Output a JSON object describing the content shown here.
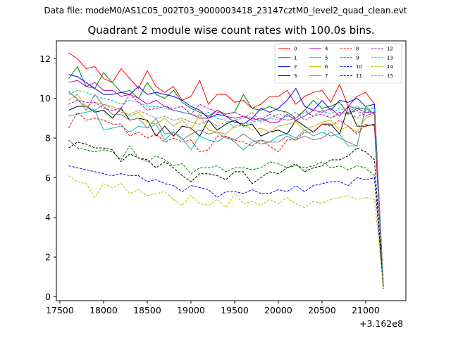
{
  "header": {
    "text": "Data file: modeM0/AS1C05_002T03_9000003418_23147cztM0_level2_quad_clean.evt"
  },
  "chart_data": {
    "type": "line",
    "title": "Quadrant 2 module wise count rates with 100.0s bins.",
    "xlabel": "",
    "ylabel": "",
    "x_offset_label": "+3.162e8",
    "xlim": [
      17460,
      21460
    ],
    "ylim": [
      -0.2,
      12.9
    ],
    "x_ticks": [
      17500,
      18000,
      18500,
      19000,
      19500,
      20000,
      20500,
      21000
    ],
    "y_ticks": [
      0,
      2,
      4,
      6,
      8,
      10,
      12
    ],
    "legend": {
      "position": "top-right",
      "columns": 4
    },
    "x_start": 17600,
    "x_step": 100,
    "series": [
      {
        "name": "0",
        "color": "#ff0000",
        "dash": false,
        "values": [
          12.3,
          12.0,
          11.5,
          11.6,
          11.0,
          10.8,
          11.5,
          11.0,
          10.5,
          11.4,
          10.6,
          10.3,
          10.6,
          9.9,
          10.1,
          10.9,
          9.7,
          10.2,
          10.2,
          9.8,
          9.9,
          9.5,
          9.7,
          10.1,
          10.1,
          10.4,
          9.7,
          10.1,
          10.3,
          10.4,
          9.8,
          10.7,
          9.6,
          10.1,
          10.3,
          9.7,
          0.6
        ]
      },
      {
        "name": "1",
        "color": "#008000",
        "dash": false,
        "values": [
          11.0,
          11.6,
          10.6,
          10.5,
          11.3,
          10.8,
          10.3,
          10.4,
          10.0,
          10.8,
          10.2,
          10.0,
          10.4,
          9.8,
          9.5,
          9.3,
          9.1,
          9.4,
          9.2,
          9.3,
          10.2,
          9.5,
          9.4,
          9.6,
          9.4,
          9.3,
          9.0,
          9.4,
          9.9,
          9.5,
          9.6,
          9.8,
          9.2,
          9.5,
          9.5,
          9.2,
          0.5
        ]
      },
      {
        "name": "2",
        "color": "#0000ff",
        "dash": false,
        "values": [
          11.2,
          11.1,
          10.8,
          10.5,
          10.2,
          10.2,
          10.3,
          10.2,
          10.6,
          10.2,
          10.3,
          10.2,
          10.1,
          9.9,
          9.6,
          9.4,
          9.0,
          9.2,
          9.1,
          8.8,
          8.7,
          9.0,
          9.5,
          9.3,
          9.5,
          9.9,
          10.5,
          9.6,
          9.4,
          9.9,
          9.4,
          9.9,
          9.8,
          10.0,
          9.6,
          9.7,
          0.7
        ]
      },
      {
        "name": "3",
        "color": "#000000",
        "dash": false,
        "values": [
          9.4,
          9.6,
          9.6,
          9.3,
          9.4,
          9.0,
          9.5,
          8.9,
          9.0,
          8.9,
          8.1,
          8.6,
          8.1,
          8.6,
          8.5,
          8.1,
          8.9,
          8.4,
          8.7,
          8.9,
          8.6,
          8.7,
          8.1,
          8.3,
          8.4,
          8.2,
          8.9,
          8.6,
          8.3,
          8.7,
          8.7,
          8.2,
          9.6,
          8.6,
          8.6,
          8.7,
          0.5
        ]
      },
      {
        "name": "4",
        "color": "#bf00bf",
        "dash": false,
        "values": [
          10.8,
          10.9,
          10.6,
          10.8,
          10.4,
          10.4,
          10.1,
          10.2,
          10.0,
          9.7,
          9.9,
          9.6,
          9.4,
          9.3,
          9.2,
          9.0,
          9.0,
          9.4,
          9.1,
          9.0,
          9.1,
          8.9,
          9.0,
          8.8,
          8.8,
          9.2,
          8.9,
          9.1,
          9.4,
          9.3,
          9.5,
          9.1,
          9.6,
          9.5,
          9.3,
          9.3,
          0.6
        ]
      },
      {
        "name": "5",
        "color": "#00bfbf",
        "dash": false,
        "values": [
          9.1,
          9.2,
          9.3,
          9.4,
          8.4,
          8.5,
          8.6,
          8.3,
          8.6,
          8.5,
          8.7,
          7.9,
          8.3,
          8.0,
          7.4,
          8.1,
          7.9,
          7.8,
          8.1,
          7.8,
          7.4,
          7.8,
          7.9,
          7.8,
          8.1,
          8.2,
          8.0,
          8.4,
          8.1,
          8.3,
          8.1,
          8.2,
          7.6,
          7.6,
          9.5,
          9.2,
          0.6
        ]
      },
      {
        "name": "6",
        "color": "#bfbf00",
        "dash": false,
        "values": [
          9.9,
          10.2,
          9.6,
          9.8,
          9.7,
          9.6,
          9.4,
          9.1,
          9.3,
          8.8,
          8.7,
          9.0,
          8.6,
          8.9,
          8.4,
          9.2,
          8.4,
          8.3,
          8.2,
          8.6,
          8.7,
          8.4,
          8.5,
          8.3,
          8.6,
          8.7,
          8.8,
          8.4,
          8.6,
          8.8,
          8.9,
          8.4,
          8.6,
          8.3,
          9.0,
          9.2,
          0.7
        ]
      },
      {
        "name": "7",
        "color": "#808080",
        "dash": false,
        "values": [
          10.3,
          10.0,
          9.4,
          10.2,
          9.6,
          9.2,
          9.2,
          8.9,
          9.0,
          8.5,
          9.0,
          8.2,
          8.3,
          7.9,
          8.2,
          8.4,
          8.2,
          8.3,
          8.0,
          7.9,
          8.2,
          7.9,
          7.7,
          7.8,
          7.8,
          8.1,
          7.9,
          8.1,
          7.9,
          8.0,
          8.3,
          8.0,
          7.8,
          7.6,
          9.6,
          9.2,
          0.8
        ]
      },
      {
        "name": "8",
        "color": "#ff0000",
        "dash": true,
        "values": [
          8.5,
          9.3,
          8.9,
          9.0,
          8.9,
          8.7,
          8.7,
          8.1,
          8.3,
          8.0,
          8.2,
          7.8,
          8.0,
          7.8,
          7.9,
          7.3,
          7.4,
          8.1,
          8.1,
          7.9,
          7.8,
          7.6,
          7.9,
          7.6,
          7.3,
          7.9,
          7.9,
          8.3,
          8.3,
          8.7,
          8.6,
          8.9,
          8.6,
          8.2,
          8.7,
          8.6,
          0.6
        ]
      },
      {
        "name": "9",
        "color": "#008000",
        "dash": true,
        "values": [
          7.9,
          7.5,
          7.4,
          7.3,
          7.4,
          7.3,
          6.9,
          7.6,
          7.0,
          6.8,
          7.1,
          6.9,
          6.6,
          6.7,
          6.2,
          6.5,
          6.5,
          6.6,
          6.3,
          6.5,
          6.5,
          6.4,
          6.5,
          6.8,
          6.7,
          6.5,
          6.6,
          6.5,
          6.6,
          6.8,
          6.5,
          6.6,
          6.4,
          6.6,
          6.5,
          6.1,
          0.5
        ]
      },
      {
        "name": "10",
        "color": "#0000ff",
        "dash": true,
        "values": [
          6.6,
          6.5,
          6.4,
          6.3,
          6.2,
          6.1,
          6.2,
          6.1,
          6.1,
          5.8,
          5.9,
          5.7,
          5.6,
          5.3,
          5.6,
          5.5,
          5.4,
          5.0,
          5.3,
          5.3,
          5.2,
          5.4,
          5.2,
          5.2,
          5.4,
          5.3,
          5.6,
          5.3,
          5.6,
          5.7,
          5.8,
          5.8,
          5.6,
          6.0,
          5.9,
          6.0,
          0.6
        ]
      },
      {
        "name": "11",
        "color": "#000000",
        "dash": true,
        "values": [
          7.5,
          7.8,
          7.7,
          7.5,
          7.5,
          7.4,
          6.8,
          7.2,
          7.0,
          6.9,
          6.5,
          6.8,
          6.5,
          6.1,
          5.8,
          6.2,
          6.2,
          6.1,
          5.9,
          6.3,
          6.3,
          5.7,
          6.0,
          6.3,
          6.2,
          6.5,
          6.7,
          6.3,
          6.5,
          6.6,
          6.9,
          6.9,
          7.1,
          7.5,
          7.3,
          6.9,
          0.4
        ]
      },
      {
        "name": "12",
        "color": "#bf00bf",
        "dash": true,
        "values": [
          9.7,
          9.9,
          9.8,
          9.8,
          9.5,
          9.4,
          9.5,
          10.2,
          9.8,
          9.4,
          9.5,
          9.6,
          9.5,
          9.6,
          9.2,
          9.7,
          9.5,
          9.3,
          9.2,
          9.3,
          9.1,
          9.0,
          8.9,
          9.2,
          9.0,
          8.9,
          9.0,
          9.4,
          9.1,
          9.2,
          9.0,
          9.3,
          9.2,
          9.4,
          9.1,
          9.3,
          0.8
        ]
      },
      {
        "name": "13",
        "color": "#00bfbf",
        "dash": true,
        "values": [
          10.2,
          10.4,
          10.3,
          10.1,
          10.0,
          9.9,
          9.7,
          9.9,
          9.8,
          9.6,
          9.6,
          9.5,
          9.4,
          9.3,
          9.2,
          9.1,
          9.3,
          9.0,
          8.9,
          8.5,
          8.7,
          8.8,
          8.9,
          9.0,
          8.9,
          9.1,
          9.0,
          9.3,
          9.1,
          9.4,
          9.2,
          9.5,
          9.3,
          9.6,
          9.4,
          9.5,
          0.7
        ]
      },
      {
        "name": "14",
        "color": "#bfbf00",
        "dash": true,
        "values": [
          6.1,
          5.8,
          5.7,
          5.0,
          5.7,
          5.5,
          5.7,
          5.2,
          5.4,
          5.1,
          5.2,
          5.3,
          4.9,
          4.6,
          5.1,
          4.7,
          4.6,
          4.9,
          4.5,
          5.2,
          4.7,
          4.8,
          4.6,
          4.9,
          4.7,
          5.0,
          4.7,
          4.5,
          4.8,
          4.7,
          4.9,
          5.0,
          5.1,
          4.9,
          5.0,
          4.9,
          0.6
        ]
      },
      {
        "name": "15",
        "color": "#808080",
        "dash": true,
        "values": [
          10.4,
          9.9,
          9.6,
          9.4,
          9.7,
          9.5,
          9.3,
          9.2,
          9.4,
          9.2,
          9.0,
          9.1,
          8.9,
          9.0,
          8.8,
          8.7,
          8.9,
          8.6,
          8.8,
          8.9,
          9.0,
          9.3,
          8.8,
          9.0,
          9.2,
          9.1,
          9.3,
          8.9,
          9.1,
          9.4,
          9.0,
          9.2,
          9.3,
          9.0,
          9.4,
          9.2,
          0.7
        ]
      }
    ]
  }
}
